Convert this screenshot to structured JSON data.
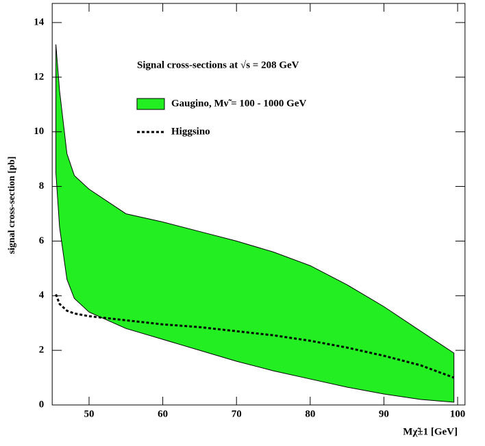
{
  "chart_data": {
    "type": "area-range",
    "annotation": "Signal cross-sections at √s = 208 GeV",
    "xlabel": "Mχ̃±1 [GeV]",
    "ylabel": "signal cross-section [pb]",
    "x": [
      45.5,
      46,
      47,
      48,
      50,
      55,
      60,
      65,
      70,
      75,
      80,
      85,
      90,
      95,
      99.5
    ],
    "series": [
      {
        "name": "Gaugino, Mν̃ = 100 - 1000 GeV",
        "color": "#22ee22",
        "values": [
          13.2,
          11.5,
          9.2,
          8.4,
          7.9,
          7.0,
          6.7,
          6.35,
          6.0,
          5.6,
          5.1,
          4.4,
          3.6,
          2.7,
          1.9
        ],
        "lower": [
          8.5,
          6.5,
          4.6,
          3.9,
          3.4,
          2.8,
          2.4,
          2.0,
          1.6,
          1.25,
          0.95,
          0.65,
          0.4,
          0.2,
          0.1
        ]
      },
      {
        "name": "Higgsino",
        "color": "#000000",
        "dash": true,
        "values": [
          4.05,
          3.7,
          3.45,
          3.35,
          3.25,
          3.1,
          2.95,
          2.85,
          2.7,
          2.55,
          2.35,
          2.1,
          1.8,
          1.45,
          1.0
        ]
      }
    ],
    "xlim": [
      45,
      101
    ],
    "ylim": [
      0,
      14.7
    ],
    "xticks": [
      50,
      60,
      70,
      80,
      90,
      100
    ],
    "yticks": [
      0,
      2,
      4,
      6,
      8,
      10,
      12,
      14
    ]
  }
}
